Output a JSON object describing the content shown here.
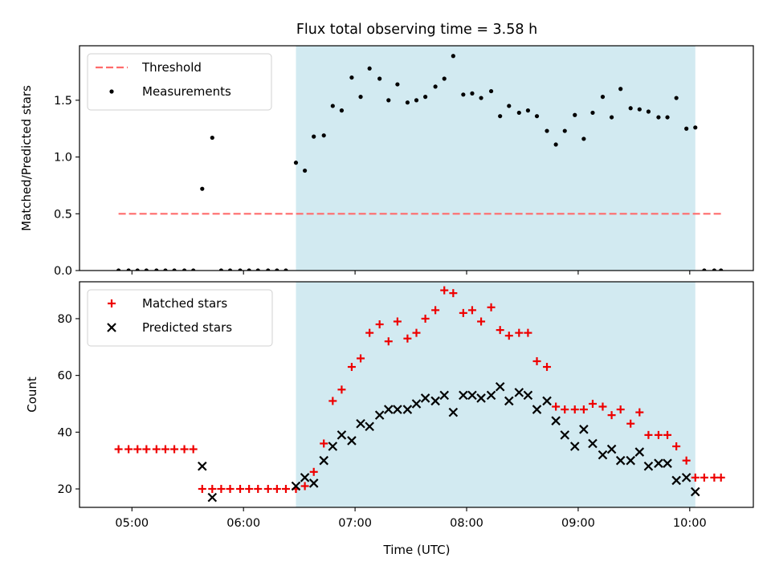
{
  "chart_data": {
    "title": "Flux total observing time = 3.58 h",
    "xlabel": "Time (UTC)",
    "x_unit": "hours UTC",
    "xlim": [
      4.53,
      10.57
    ],
    "xticks": [
      5,
      6,
      7,
      8,
      9,
      10
    ],
    "xtick_labels": [
      "05:00",
      "06:00",
      "07:00",
      "08:00",
      "09:00",
      "10:00"
    ],
    "shaded_span": [
      6.47,
      10.05
    ],
    "shade_color": "#add8e6",
    "panels": [
      {
        "type": "scatter",
        "ylabel": "Matched/Predicted stars",
        "ylim": [
          0,
          1.98
        ],
        "yticks": [
          0.0,
          0.5,
          1.0,
          1.5
        ],
        "ytick_labels": [
          "0.0",
          "0.5",
          "1.0",
          "1.5"
        ],
        "legend_position": "top-left",
        "threshold": {
          "name": "Threshold",
          "value": 0.5,
          "x_range": [
            4.88,
            10.28
          ],
          "color": "#ff6b6b",
          "style": "dashed"
        },
        "series": [
          {
            "name": "Measurements",
            "marker": "dot",
            "color": "#000000",
            "x": [
              4.88,
              4.97,
              5.05,
              5.13,
              5.22,
              5.3,
              5.38,
              5.47,
              5.55,
              5.63,
              5.72,
              5.8,
              5.88,
              5.97,
              6.05,
              6.13,
              6.22,
              6.3,
              6.38,
              6.47,
              6.55,
              6.63,
              6.72,
              6.8,
              6.88,
              6.97,
              7.05,
              7.13,
              7.22,
              7.3,
              7.38,
              7.47,
              7.55,
              7.63,
              7.72,
              7.8,
              7.88,
              7.97,
              8.05,
              8.13,
              8.22,
              8.3,
              8.38,
              8.47,
              8.55,
              8.63,
              8.72,
              8.8,
              8.88,
              8.97,
              9.05,
              9.13,
              9.22,
              9.3,
              9.38,
              9.47,
              9.55,
              9.63,
              9.72,
              9.8,
              9.88,
              9.97,
              10.05,
              10.13,
              10.22,
              10.28
            ],
            "y": [
              0,
              0,
              0,
              0,
              0,
              0,
              0,
              0,
              0,
              0.72,
              1.17,
              0,
              0,
              0,
              0,
              0,
              0,
              0,
              0,
              0.95,
              0.88,
              1.18,
              1.19,
              1.45,
              1.41,
              1.7,
              1.53,
              1.78,
              1.69,
              1.5,
              1.64,
              1.48,
              1.5,
              1.53,
              1.62,
              1.69,
              1.89,
              1.55,
              1.56,
              1.52,
              1.58,
              1.36,
              1.45,
              1.39,
              1.41,
              1.36,
              1.23,
              1.11,
              1.23,
              1.37,
              1.16,
              1.39,
              1.53,
              1.35,
              1.6,
              1.43,
              1.42,
              1.4,
              1.35,
              1.35,
              1.52,
              1.25,
              1.26,
              0,
              0,
              0
            ]
          }
        ]
      },
      {
        "type": "scatter",
        "ylabel": "Count",
        "ylim": [
          13.5,
          93
        ],
        "yticks": [
          20,
          40,
          60,
          80
        ],
        "ytick_labels": [
          "20",
          "40",
          "60",
          "80"
        ],
        "legend_position": "top-left",
        "series": [
          {
            "name": "Matched stars",
            "marker": "plus",
            "color": "#ee0000",
            "x": [
              4.88,
              4.97,
              5.05,
              5.13,
              5.22,
              5.3,
              5.38,
              5.47,
              5.55,
              5.63,
              5.72,
              5.8,
              5.88,
              5.97,
              6.05,
              6.13,
              6.22,
              6.3,
              6.38,
              6.47,
              6.55,
              6.63,
              6.72,
              6.8,
              6.88,
              6.97,
              7.05,
              7.13,
              7.22,
              7.3,
              7.38,
              7.47,
              7.55,
              7.63,
              7.72,
              7.8,
              7.88,
              7.97,
              8.05,
              8.13,
              8.22,
              8.3,
              8.38,
              8.47,
              8.55,
              8.63,
              8.72,
              8.8,
              8.88,
              8.97,
              9.05,
              9.13,
              9.22,
              9.3,
              9.38,
              9.47,
              9.55,
              9.63,
              9.72,
              9.8,
              9.88,
              9.97,
              10.05,
              10.13,
              10.22,
              10.28
            ],
            "y": [
              34,
              34,
              34,
              34,
              34,
              34,
              34,
              34,
              34,
              20,
              20,
              20,
              20,
              20,
              20,
              20,
              20,
              20,
              20,
              20,
              21,
              26,
              36,
              51,
              55,
              63,
              66,
              75,
              78,
              72,
              79,
              73,
              75,
              80,
              83,
              90,
              89,
              82,
              83,
              79,
              84,
              76,
              74,
              75,
              75,
              65,
              63,
              49,
              48,
              48,
              48,
              50,
              49,
              46,
              48,
              43,
              47,
              39,
              39,
              39,
              35,
              30,
              24,
              24,
              24,
              24
            ]
          },
          {
            "name": "Predicted stars",
            "marker": "x",
            "color": "#000000",
            "x": [
              5.63,
              5.72,
              6.47,
              6.55,
              6.63,
              6.72,
              6.8,
              6.88,
              6.97,
              7.05,
              7.13,
              7.22,
              7.3,
              7.38,
              7.47,
              7.55,
              7.63,
              7.72,
              7.8,
              7.88,
              7.97,
              8.05,
              8.13,
              8.22,
              8.3,
              8.38,
              8.47,
              8.55,
              8.63,
              8.72,
              8.8,
              8.88,
              8.97,
              9.05,
              9.13,
              9.22,
              9.3,
              9.38,
              9.47,
              9.55,
              9.63,
              9.72,
              9.8,
              9.88,
              9.97,
              10.05
            ],
            "y": [
              28,
              17,
              21,
              24,
              22,
              30,
              35,
              39,
              37,
              43,
              42,
              46,
              48,
              48,
              48,
              50,
              52,
              51,
              53,
              47,
              53,
              53,
              52,
              53,
              56,
              51,
              54,
              53,
              48,
              51,
              44,
              39,
              35,
              41,
              36,
              32,
              34,
              30,
              30,
              33,
              28,
              29,
              29,
              23,
              24,
              19
            ]
          }
        ]
      }
    ]
  }
}
